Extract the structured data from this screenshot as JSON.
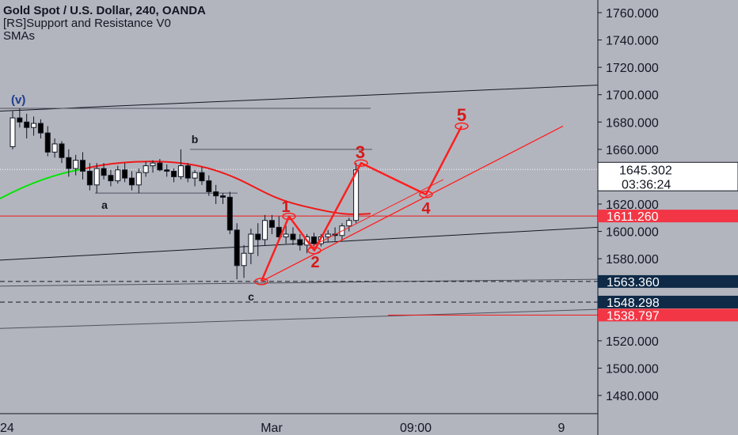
{
  "header": {
    "title": "Gold Spot / U.S. Dollar, 240, OANDA",
    "indicator_1": "[RS]Support and Resistance V0",
    "indicator_2": "SMAs"
  },
  "colors": {
    "background": "#b2b5be",
    "bull_candle": "#ffffff",
    "bear_candle": "#000000",
    "wave": "#ff1f1f",
    "wave_label": "#d61a1a",
    "sma_green": "#00e600",
    "sma_red": "#f01818",
    "price_tag_red": "#f23645",
    "price_tag_navy": "#0e2a47",
    "price_tag_white": "#ffffff",
    "axis_text": "#131722"
  },
  "chart_data": {
    "type": "candlestick",
    "symbol": "Gold Spot / U.S. Dollar",
    "timeframe": "240",
    "exchange": "OANDA",
    "y_range": [
      1465,
      1770
    ],
    "y_ticks": [
      1760,
      1740,
      1720,
      1700,
      1680,
      1660,
      1620,
      1600,
      1580,
      1520,
      1500,
      1480
    ],
    "y_tick_labels": [
      "1760.000",
      "1740.000",
      "1720.000",
      "1700.000",
      "1680.000",
      "1660.000",
      "1620.000",
      "1600.000",
      "1580.000",
      "1520.000",
      "1500.000",
      "1480.000"
    ],
    "x_tick_labels": [
      "24",
      "Mar",
      "09:00",
      "9"
    ],
    "last_price": {
      "value": 1645.302,
      "label": "1645.302",
      "countdown": "03:36:24"
    },
    "price_tags": [
      {
        "value": 1611.26,
        "label": "1611.260",
        "style": "red"
      },
      {
        "value": 1563.36,
        "label": "1563.360",
        "style": "navy"
      },
      {
        "value": 1548.298,
        "label": "1548.298",
        "style": "navy"
      },
      {
        "value": 1538.797,
        "label": "1538.797",
        "style": "red"
      }
    ],
    "candles": [
      [
        1662,
        1688,
        1660,
        1683
      ],
      [
        1683,
        1690,
        1676,
        1680
      ],
      [
        1680,
        1686,
        1668,
        1676
      ],
      [
        1676,
        1684,
        1670,
        1679
      ],
      [
        1679,
        1682,
        1668,
        1672
      ],
      [
        1672,
        1677,
        1655,
        1658
      ],
      [
        1658,
        1668,
        1654,
        1664
      ],
      [
        1664,
        1666,
        1650,
        1654
      ],
      [
        1654,
        1660,
        1640,
        1646
      ],
      [
        1646,
        1656,
        1641,
        1652
      ],
      [
        1652,
        1658,
        1638,
        1644
      ],
      [
        1644,
        1650,
        1630,
        1634
      ],
      [
        1634,
        1650,
        1628,
        1646
      ],
      [
        1646,
        1650,
        1638,
        1641
      ],
      [
        1641,
        1645,
        1633,
        1637
      ],
      [
        1637,
        1648,
        1635,
        1645
      ],
      [
        1645,
        1650,
        1636,
        1639
      ],
      [
        1639,
        1644,
        1630,
        1634
      ],
      [
        1634,
        1646,
        1628,
        1643
      ],
      [
        1643,
        1651,
        1640,
        1648
      ],
      [
        1648,
        1652,
        1643,
        1650
      ],
      [
        1650,
        1653,
        1644,
        1645
      ],
      [
        1645,
        1649,
        1640,
        1644
      ],
      [
        1644,
        1646,
        1636,
        1640
      ],
      [
        1640,
        1660,
        1638,
        1648
      ],
      [
        1648,
        1650,
        1636,
        1639
      ],
      [
        1639,
        1645,
        1633,
        1643
      ],
      [
        1643,
        1647,
        1634,
        1637
      ],
      [
        1637,
        1641,
        1626,
        1629
      ],
      [
        1629,
        1634,
        1620,
        1626
      ],
      [
        1626,
        1628,
        1620,
        1625
      ],
      [
        1625,
        1629,
        1598,
        1601
      ],
      [
        1601,
        1606,
        1565,
        1575
      ],
      [
        1575,
        1590,
        1566,
        1584
      ],
      [
        1584,
        1602,
        1576,
        1598
      ],
      [
        1598,
        1606,
        1582,
        1594
      ],
      [
        1594,
        1612,
        1590,
        1608
      ],
      [
        1608,
        1612,
        1598,
        1603
      ],
      [
        1603,
        1611,
        1593,
        1596
      ],
      [
        1596,
        1604,
        1591,
        1598
      ],
      [
        1598,
        1603,
        1590,
        1594
      ],
      [
        1594,
        1598,
        1586,
        1590
      ],
      [
        1590,
        1598,
        1584,
        1596
      ],
      [
        1596,
        1599,
        1589,
        1591
      ],
      [
        1591,
        1598,
        1589,
        1596
      ],
      [
        1596,
        1601,
        1592,
        1598
      ],
      [
        1598,
        1603,
        1593,
        1597
      ],
      [
        1597,
        1606,
        1594,
        1604
      ],
      [
        1604,
        1610,
        1600,
        1608
      ],
      [
        1608,
        1650,
        1606,
        1645
      ]
    ],
    "waves": [
      {
        "label": "(v)",
        "value": 1690
      },
      {
        "label": "a",
        "value": 1628
      },
      {
        "label": "b",
        "value": 1660
      },
      {
        "label": "c",
        "value": 1563.36
      },
      {
        "label": "1",
        "value": 1611
      },
      {
        "label": "2",
        "value": 1586
      },
      {
        "label": "3",
        "value": 1650
      },
      {
        "label": "4",
        "value": 1627
      },
      {
        "label": "5",
        "value": 1677
      }
    ]
  }
}
